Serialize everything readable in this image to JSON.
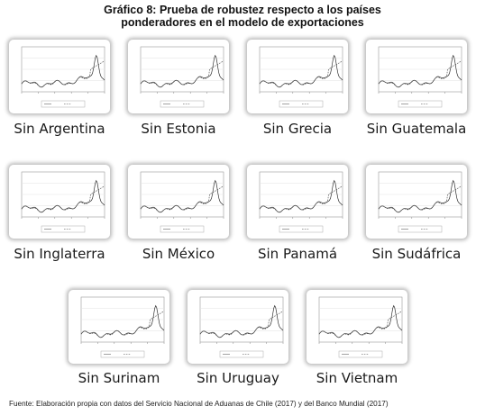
{
  "header": {
    "title_line1": "Gráfico 8: Prueba de robustez respecto a los países",
    "title_line2": "ponderadores en el modelo de exportaciones"
  },
  "footer": {
    "source": "Fuente: Elaboración propia con datos del Servicio Nacional de Aduanas de Chile (2017) y del Banco Mundial (2017)"
  },
  "chart_data": [
    {
      "type": "line",
      "title": "Sin Argentina"
    },
    {
      "type": "line",
      "title": "Sin Estonia"
    },
    {
      "type": "line",
      "title": "Sin Grecia"
    },
    {
      "type": "line",
      "title": "Sin Guatemala"
    },
    {
      "type": "line",
      "title": "Sin Inglaterra"
    },
    {
      "type": "line",
      "title": "Sin México"
    },
    {
      "type": "line",
      "title": "Sin Panamá"
    },
    {
      "type": "line",
      "title": "Sin Sudáfrica"
    },
    {
      "type": "line",
      "title": "Sin Surinam"
    },
    {
      "type": "line",
      "title": "Sin Uruguay"
    },
    {
      "type": "line",
      "title": "Sin Vietnam"
    }
  ]
}
